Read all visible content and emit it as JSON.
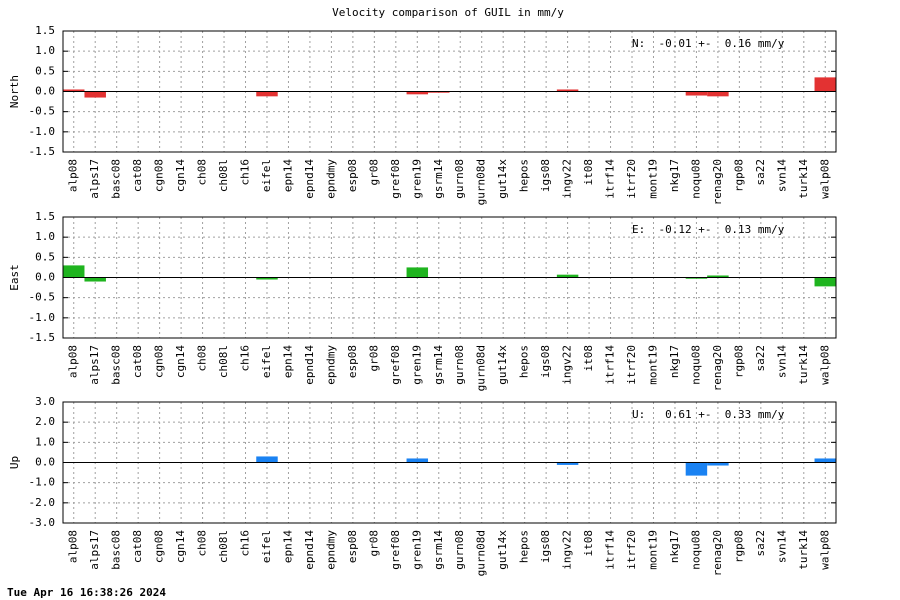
{
  "title": "Velocity comparison of GUIL in mm/y",
  "footer": "Tue Apr 16 16:38:26 2024",
  "chart_data": [
    {
      "type": "bar",
      "y_label": "North",
      "annotation": "N:  -0.01 +-  0.16 mm/y",
      "categories": [
        "alp08",
        "alps17",
        "basc08",
        "cat08",
        "cgn08",
        "cgn14",
        "ch08",
        "ch08l",
        "ch16",
        "eifel",
        "epn14",
        "epnd14",
        "epndmy",
        "esp08",
        "gr08",
        "gref08",
        "gren19",
        "gsrm14",
        "gurn08",
        "gurn08d",
        "gut14x",
        "hepos",
        "igs08",
        "ingv22",
        "it08",
        "itrf14",
        "itrf20",
        "mont19",
        "nkg17",
        "noqu08",
        "renag20",
        "rgp08",
        "sa22",
        "svn14",
        "turk14",
        "walp08"
      ],
      "values": [
        0.05,
        -0.15,
        0,
        0,
        0,
        0,
        0,
        0,
        0,
        -0.12,
        0,
        0,
        0,
        0,
        0,
        0,
        -0.07,
        -0.03,
        0,
        0,
        0,
        0,
        0,
        0.05,
        0,
        0,
        0,
        0,
        0,
        -0.1,
        -0.12,
        0,
        0,
        0,
        0,
        0.35
      ],
      "color": "#e33232",
      "ylim": [
        -1.5,
        1.5
      ],
      "yticks": [
        -1.5,
        {
          "value": -1,
          "label": "-1.0"
        },
        -0.5,
        {
          "value": 0,
          "label": "0.0"
        },
        0.5,
        {
          "value": 1,
          "label": "1.0"
        },
        1.5
      ],
      "grid": true
    },
    {
      "type": "bar",
      "y_label": "East",
      "annotation": "E:  -0.12 +-  0.13 mm/y",
      "categories": [
        "alp08",
        "alps17",
        "basc08",
        "cat08",
        "cgn08",
        "cgn14",
        "ch08",
        "ch08l",
        "ch16",
        "eifel",
        "epn14",
        "epnd14",
        "epndmy",
        "esp08",
        "gr08",
        "gref08",
        "gren19",
        "gsrm14",
        "gurn08",
        "gurn08d",
        "gut14x",
        "hepos",
        "igs08",
        "ingv22",
        "it08",
        "itrf14",
        "itrf20",
        "mont19",
        "nkg17",
        "noqu08",
        "renag20",
        "rgp08",
        "sa22",
        "svn14",
        "turk14",
        "walp08"
      ],
      "values": [
        0.3,
        -0.1,
        0,
        0,
        0,
        0,
        0,
        0,
        0,
        -0.05,
        0,
        0,
        0,
        0,
        0,
        0,
        0.25,
        0,
        0,
        0,
        0,
        0,
        0,
        0.07,
        0,
        0,
        0,
        0,
        0,
        -0.03,
        0.05,
        0,
        0,
        0,
        0,
        -0.22
      ],
      "color": "#1fb41f",
      "ylim": [
        -1.5,
        1.5
      ],
      "yticks": [
        -1.5,
        {
          "value": -1,
          "label": "-1.0"
        },
        -0.5,
        {
          "value": 0,
          "label": "0.0"
        },
        0.5,
        {
          "value": 1,
          "label": "1.0"
        },
        1.5
      ],
      "grid": true
    },
    {
      "type": "bar",
      "y_label": "Up",
      "annotation": "U:   0.61 +-  0.33 mm/y",
      "categories": [
        "alp08",
        "alps17",
        "basc08",
        "cat08",
        "cgn08",
        "cgn14",
        "ch08",
        "ch08l",
        "ch16",
        "eifel",
        "epn14",
        "epnd14",
        "epndmy",
        "esp08",
        "gr08",
        "gref08",
        "gren19",
        "gsrm14",
        "gurn08",
        "gurn08d",
        "gut14x",
        "hepos",
        "igs08",
        "ingv22",
        "it08",
        "itrf14",
        "itrf20",
        "mont19",
        "nkg17",
        "noqu08",
        "renag20",
        "rgp08",
        "sa22",
        "svn14",
        "turk14",
        "walp08"
      ],
      "values": [
        0.02,
        0.02,
        0,
        0,
        0,
        0,
        0,
        0,
        0,
        0.3,
        0,
        0,
        0,
        0,
        0,
        0,
        0.2,
        0,
        0,
        0,
        0,
        0,
        0,
        -0.12,
        0,
        0,
        0,
        0,
        0,
        -0.65,
        -0.15,
        0,
        0,
        0,
        0,
        0.2
      ],
      "color": "#1a82f2",
      "ylim": [
        -3,
        3
      ],
      "yticks": [
        {
          "value": -3,
          "label": "-3.0"
        },
        {
          "value": -2,
          "label": "-2.0"
        },
        {
          "value": -1,
          "label": "-1.0"
        },
        {
          "value": 0,
          "label": "0.0"
        },
        {
          "value": 1,
          "label": "1.0"
        },
        {
          "value": 2,
          "label": "2.0"
        },
        {
          "value": 3,
          "label": "3.0"
        }
      ],
      "grid": true
    }
  ]
}
